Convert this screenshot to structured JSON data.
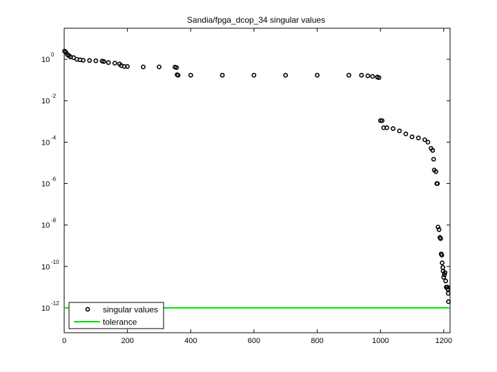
{
  "chart_data": {
    "type": "scatter",
    "title": "Sandia/fpga_dcop_34 singular values",
    "xlabel": "",
    "ylabel": "",
    "xlim": [
      0,
      1220
    ],
    "ylim_log10": [
      -13.2,
      1.5
    ],
    "yscale": "log",
    "grid": false,
    "legend_position": "bottom-left",
    "x_ticks": [
      0,
      200,
      400,
      600,
      800,
      1000,
      1200
    ],
    "x_tick_labels": [
      "0",
      "200",
      "400",
      "600",
      "800",
      "1000",
      "1200"
    ],
    "y_ticks_log10": [
      0,
      -2,
      -4,
      -6,
      -8,
      -10,
      -12
    ],
    "y_tick_labels": [
      {
        "base": "10",
        "exp": "0"
      },
      {
        "base": "10",
        "exp": "-2"
      },
      {
        "base": "10",
        "exp": "-4"
      },
      {
        "base": "10",
        "exp": "-6"
      },
      {
        "base": "10",
        "exp": "-8"
      },
      {
        "base": "10",
        "exp": "-10"
      },
      {
        "base": "10",
        "exp": "-12"
      }
    ],
    "series": [
      {
        "name": "singular values",
        "marker": "open-circle",
        "color": "#000000",
        "x": [
          1,
          5,
          10,
          15,
          20,
          30,
          40,
          50,
          60,
          80,
          100,
          120,
          125,
          140,
          160,
          175,
          180,
          190,
          200,
          250,
          300,
          350,
          355,
          357,
          360,
          400,
          500,
          600,
          700,
          800,
          900,
          940,
          960,
          975,
          990,
          995,
          1000,
          1005,
          1010,
          1020,
          1040,
          1060,
          1080,
          1100,
          1120,
          1140,
          1150,
          1160,
          1165,
          1168,
          1170,
          1175,
          1178,
          1180,
          1182,
          1185,
          1188,
          1190,
          1192,
          1194,
          1195,
          1197,
          1198,
          1200,
          1202,
          1204,
          1206,
          1208,
          1210,
          1212,
          1213,
          1214,
          1215
        ],
        "y": [
          2.5,
          2.2,
          1.7,
          1.5,
          1.3,
          1.2,
          1.0,
          0.95,
          0.9,
          0.88,
          0.85,
          0.82,
          0.78,
          0.7,
          0.65,
          0.6,
          0.5,
          0.45,
          0.45,
          0.43,
          0.43,
          0.42,
          0.4,
          0.18,
          0.17,
          0.17,
          0.17,
          0.17,
          0.17,
          0.17,
          0.17,
          0.17,
          0.16,
          0.15,
          0.14,
          0.13,
          0.0011,
          0.0011,
          0.0005,
          0.0005,
          0.00045,
          0.00035,
          0.00025,
          0.00018,
          0.00016,
          0.00013,
          0.0001,
          5e-05,
          4e-05,
          1.5e-05,
          4.5e-06,
          3.8e-06,
          1e-06,
          1e-06,
          8e-09,
          6e-09,
          2.5e-09,
          2.2e-09,
          4e-10,
          3.5e-10,
          1.5e-10,
          9e-11,
          6e-11,
          3e-11,
          4e-11,
          5e-11,
          2e-11,
          1e-11,
          1e-11,
          1e-11,
          8e-12,
          5e-12,
          2e-12
        ]
      },
      {
        "name": "tolerance",
        "marker": "line",
        "color": "#00dd00",
        "x": [
          0,
          1220
        ],
        "y": [
          1e-12,
          1e-12
        ]
      }
    ]
  },
  "legend": {
    "items": [
      {
        "label": "singular values"
      },
      {
        "label": "tolerance"
      }
    ]
  }
}
